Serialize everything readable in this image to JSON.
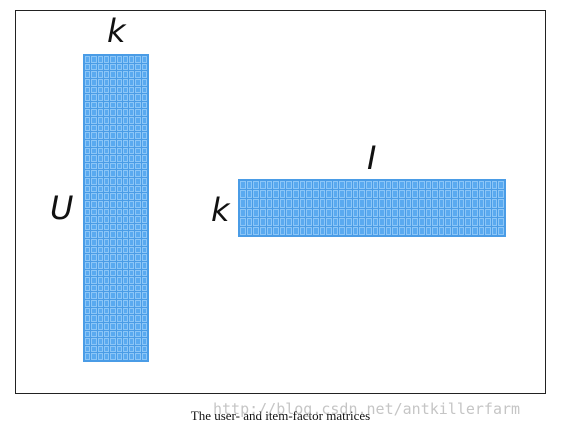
{
  "figure": {
    "user_matrix": {
      "columns_label": "k",
      "rows_label": "U",
      "grid_cols": 10,
      "grid_rows": 40
    },
    "item_matrix": {
      "columns_label": "I",
      "rows_label": "k",
      "grid_cols": 40,
      "grid_rows": 6
    },
    "cell_color": "#5aaaf0"
  },
  "caption": "The user- and item-factor matrices",
  "watermark": "http://blog.csdn.net/antkillerfarm"
}
